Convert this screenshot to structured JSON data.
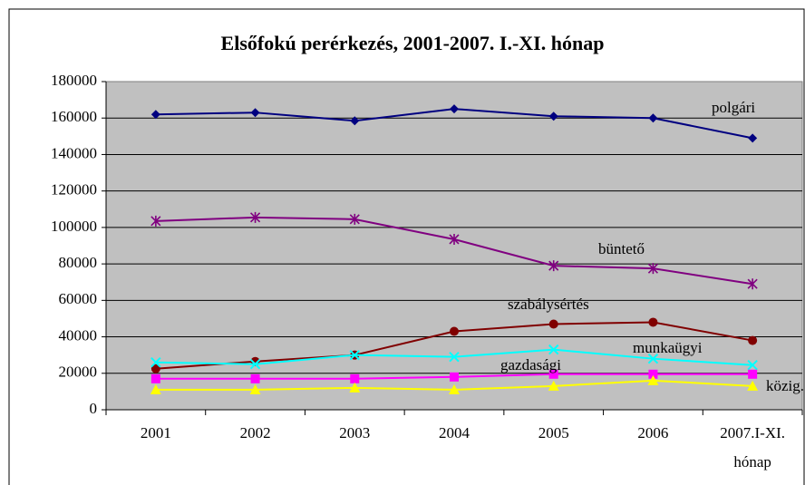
{
  "chart_data": {
    "type": "line",
    "title": "Elsőfokú perérkezés, 2001-2007. I.-XI. hónap",
    "categories": [
      "2001",
      "2002",
      "2003",
      "2004",
      "2005",
      "2006",
      "2007.I-XI. hónap"
    ],
    "series": [
      {
        "name": "polgári",
        "color": "#000080",
        "marker": "diamond",
        "values": [
          162000,
          163000,
          158500,
          165000,
          161000,
          160000,
          149000
        ]
      },
      {
        "name": "büntető",
        "color": "#800080",
        "marker": "asterisk",
        "values": [
          103500,
          105500,
          104500,
          93500,
          79000,
          77500,
          69000
        ]
      },
      {
        "name": "szabálysértés",
        "color": "#800000",
        "marker": "circle",
        "values": [
          22500,
          26500,
          30000,
          43000,
          47000,
          48000,
          38000
        ]
      },
      {
        "name": "munkaügyi",
        "color": "#00ffff",
        "marker": "x",
        "values": [
          26000,
          25000,
          30000,
          29000,
          33000,
          28000,
          24500
        ]
      },
      {
        "name": "gazdasági",
        "color": "#ff00ff",
        "marker": "square",
        "values": [
          17000,
          17000,
          17000,
          18000,
          19500,
          19500,
          19500
        ]
      },
      {
        "name": "közig.",
        "color": "#ffff00",
        "marker": "triangle",
        "values": [
          11000,
          11000,
          12000,
          11000,
          13000,
          16000,
          13000
        ]
      }
    ],
    "ylim": [
      0,
      180000
    ],
    "yticks": [
      0,
      20000,
      40000,
      60000,
      80000,
      100000,
      120000,
      140000,
      160000,
      180000
    ],
    "grid": true
  }
}
